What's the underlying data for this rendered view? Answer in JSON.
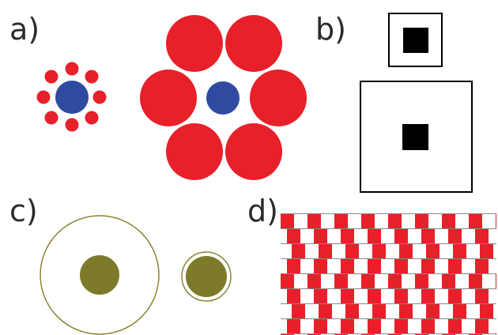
{
  "labels": {
    "a": "a)",
    "b": "b)",
    "c": "c)",
    "d": "d)"
  },
  "colors": {
    "red": "#e8202a",
    "blue": "#2f4aa0",
    "black": "#000000",
    "olive": "#7d7a2a",
    "olive_outline": "#8a8434",
    "gray_line": "#888888"
  },
  "icons": {
    "a": "ebbinghaus-illusion",
    "b": "delboeuf-squares",
    "c": "delboeuf-circles",
    "d": "cafe-wall-illusion"
  }
}
